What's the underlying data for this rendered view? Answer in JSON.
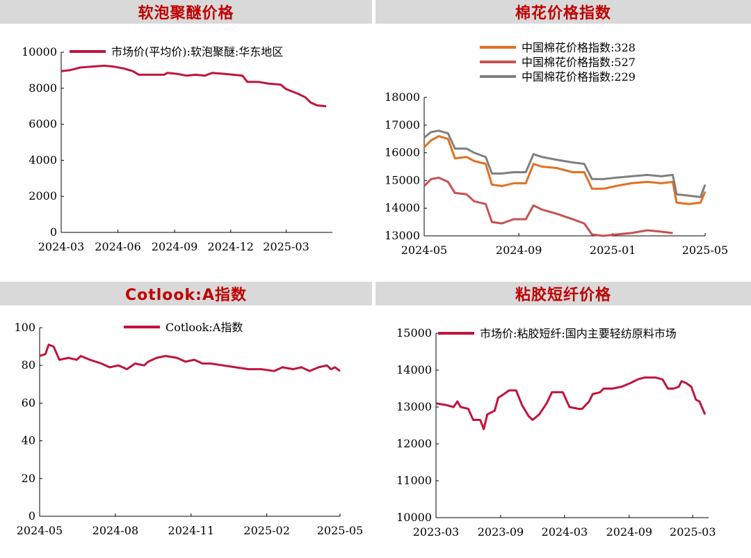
{
  "panels": {
    "p1": {
      "title": "软泡聚醚价格"
    },
    "p2": {
      "title": "棉花价格指数"
    },
    "p3": {
      "title": "Cotlook:A指数"
    },
    "p4": {
      "title": "粘胶短纤价格"
    }
  },
  "chart_data": [
    {
      "type": "line",
      "title": "软泡聚醚价格",
      "x_ticks": [
        "2024-03",
        "2024-06",
        "2024-09",
        "2024-12",
        "2025-03"
      ],
      "x_range": [
        "2024-03-01",
        "2025-05-15"
      ],
      "ylim": [
        0,
        10000
      ],
      "y_ticks": [
        0,
        2000,
        4000,
        6000,
        8000,
        10000
      ],
      "legend": "top",
      "series": [
        {
          "name": "市场价(平均价):软泡聚醚:华东地区",
          "color": "#c0143c",
          "points": [
            [
              "2024-03-01",
              8950
            ],
            [
              "2024-03-15",
              9000
            ],
            [
              "2024-04-01",
              9150
            ],
            [
              "2024-04-20",
              9200
            ],
            [
              "2024-05-10",
              9250
            ],
            [
              "2024-05-25",
              9200
            ],
            [
              "2024-06-10",
              9100
            ],
            [
              "2024-06-25",
              8950
            ],
            [
              "2024-07-05",
              8750
            ],
            [
              "2024-08-15",
              8750
            ],
            [
              "2024-08-20",
              8850
            ],
            [
              "2024-09-05",
              8800
            ],
            [
              "2024-09-20",
              8700
            ],
            [
              "2024-10-05",
              8750
            ],
            [
              "2024-10-20",
              8700
            ],
            [
              "2024-11-01",
              8850
            ],
            [
              "2024-11-20",
              8800
            ],
            [
              "2024-12-05",
              8750
            ],
            [
              "2024-12-20",
              8700
            ],
            [
              "2024-12-28",
              8350
            ],
            [
              "2025-01-15",
              8350
            ],
            [
              "2025-02-01",
              8250
            ],
            [
              "2025-02-20",
              8200
            ],
            [
              "2025-03-01",
              7950
            ],
            [
              "2025-03-20",
              7700
            ],
            [
              "2025-04-01",
              7500
            ],
            [
              "2025-04-10",
              7200
            ],
            [
              "2025-04-20",
              7050
            ],
            [
              "2025-05-05",
              7000
            ]
          ]
        }
      ]
    },
    {
      "type": "line",
      "title": "棉花价格指数",
      "x_ticks": [
        "2024-05",
        "2024-09",
        "2025-01",
        "2025-05"
      ],
      "x_range": [
        "2024-05-01",
        "2025-05-01"
      ],
      "ylim": [
        13000,
        18000
      ],
      "y_ticks": [
        13000,
        14000,
        15000,
        16000,
        17000,
        18000
      ],
      "legend": "top",
      "series": [
        {
          "name": "中国棉花价格指数:328",
          "color": "#e07020",
          "points": [
            [
              "2024-05-01",
              16200
            ],
            [
              "2024-05-10",
              16450
            ],
            [
              "2024-05-20",
              16600
            ],
            [
              "2024-06-01",
              16500
            ],
            [
              "2024-06-10",
              15800
            ],
            [
              "2024-06-25",
              15850
            ],
            [
              "2024-07-05",
              15700
            ],
            [
              "2024-07-20",
              15600
            ],
            [
              "2024-07-28",
              14850
            ],
            [
              "2024-08-10",
              14800
            ],
            [
              "2024-08-25",
              14900
            ],
            [
              "2024-09-10",
              14900
            ],
            [
              "2024-09-20",
              15600
            ],
            [
              "2024-10-01",
              15500
            ],
            [
              "2024-10-20",
              15450
            ],
            [
              "2024-11-10",
              15300
            ],
            [
              "2024-11-25",
              15300
            ],
            [
              "2024-12-05",
              14700
            ],
            [
              "2024-12-20",
              14700
            ],
            [
              "2025-01-05",
              14800
            ],
            [
              "2025-01-25",
              14900
            ],
            [
              "2025-02-15",
              14950
            ],
            [
              "2025-03-05",
              14900
            ],
            [
              "2025-03-20",
              14950
            ],
            [
              "2025-03-25",
              14200
            ],
            [
              "2025-04-10",
              14150
            ],
            [
              "2025-04-25",
              14200
            ],
            [
              "2025-05-01",
              14600
            ]
          ]
        },
        {
          "name": "中国棉花价格指数:527",
          "color": "#c85050",
          "points": [
            [
              "2024-05-01",
              14800
            ],
            [
              "2024-05-10",
              15050
            ],
            [
              "2024-05-20",
              15100
            ],
            [
              "2024-06-01",
              14950
            ],
            [
              "2024-06-10",
              14550
            ],
            [
              "2024-06-25",
              14500
            ],
            [
              "2024-07-05",
              14250
            ],
            [
              "2024-07-20",
              14150
            ],
            [
              "2024-07-28",
              13500
            ],
            [
              "2024-08-10",
              13450
            ],
            [
              "2024-08-25",
              13600
            ],
            [
              "2024-09-10",
              13600
            ],
            [
              "2024-09-20",
              14100
            ],
            [
              "2024-10-01",
              13950
            ],
            [
              "2024-10-20",
              13800
            ],
            [
              "2024-11-10",
              13600
            ],
            [
              "2024-11-25",
              13450
            ],
            [
              "2024-12-05",
              13050
            ],
            [
              "2024-12-20",
              13000
            ],
            [
              "2025-01-05",
              13050
            ],
            [
              "2025-01-25",
              13100
            ],
            [
              "2025-02-15",
              13200
            ],
            [
              "2025-03-05",
              13150
            ],
            [
              "2025-03-20",
              13100
            ]
          ]
        },
        {
          "name": "中国棉花价格指数:229",
          "color": "#7f7f7f",
          "points": [
            [
              "2024-05-01",
              16550
            ],
            [
              "2024-05-10",
              16750
            ],
            [
              "2024-05-20",
              16800
            ],
            [
              "2024-06-01",
              16700
            ],
            [
              "2024-06-10",
              16150
            ],
            [
              "2024-06-25",
              16150
            ],
            [
              "2024-07-05",
              16000
            ],
            [
              "2024-07-20",
              15850
            ],
            [
              "2024-07-28",
              15250
            ],
            [
              "2024-08-10",
              15250
            ],
            [
              "2024-08-25",
              15300
            ],
            [
              "2024-09-10",
              15300
            ],
            [
              "2024-09-20",
              15950
            ],
            [
              "2024-10-01",
              15850
            ],
            [
              "2024-10-20",
              15750
            ],
            [
              "2024-11-10",
              15650
            ],
            [
              "2024-11-25",
              15600
            ],
            [
              "2024-12-05",
              15050
            ],
            [
              "2024-12-20",
              15050
            ],
            [
              "2025-01-05",
              15100
            ],
            [
              "2025-01-25",
              15150
            ],
            [
              "2025-02-15",
              15200
            ],
            [
              "2025-03-05",
              15150
            ],
            [
              "2025-03-20",
              15200
            ],
            [
              "2025-03-25",
              14500
            ],
            [
              "2025-04-10",
              14450
            ],
            [
              "2025-04-25",
              14400
            ],
            [
              "2025-05-01",
              14850
            ]
          ]
        }
      ]
    },
    {
      "type": "line",
      "title": "Cotlook:A指数",
      "x_ticks": [
        "2024-05",
        "2024-08",
        "2024-11",
        "2025-02",
        "2025-05"
      ],
      "x_range": [
        "2024-05-01",
        "2025-05-01"
      ],
      "ylim": [
        0,
        100
      ],
      "y_ticks": [
        0,
        20,
        40,
        60,
        80,
        100
      ],
      "legend": "top",
      "series": [
        {
          "name": "Cotlook:A指数",
          "color": "#c0143c",
          "points": [
            [
              "2024-05-01",
              85
            ],
            [
              "2024-05-08",
              86
            ],
            [
              "2024-05-12",
              91
            ],
            [
              "2024-05-18",
              90
            ],
            [
              "2024-05-25",
              83
            ],
            [
              "2024-06-05",
              84
            ],
            [
              "2024-06-15",
              83
            ],
            [
              "2024-06-20",
              85
            ],
            [
              "2024-07-01",
              83
            ],
            [
              "2024-07-15",
              81
            ],
            [
              "2024-07-25",
              79
            ],
            [
              "2024-08-05",
              80
            ],
            [
              "2024-08-15",
              78
            ],
            [
              "2024-08-25",
              81
            ],
            [
              "2024-09-05",
              80
            ],
            [
              "2024-09-10",
              82
            ],
            [
              "2024-09-20",
              84
            ],
            [
              "2024-10-01",
              85
            ],
            [
              "2024-10-15",
              84
            ],
            [
              "2024-10-25",
              82
            ],
            [
              "2024-11-05",
              83
            ],
            [
              "2024-11-15",
              81
            ],
            [
              "2024-11-25",
              81
            ],
            [
              "2024-12-10",
              80
            ],
            [
              "2024-12-25",
              79
            ],
            [
              "2025-01-10",
              78
            ],
            [
              "2025-01-25",
              78
            ],
            [
              "2025-02-10",
              77
            ],
            [
              "2025-02-20",
              79
            ],
            [
              "2025-03-05",
              78
            ],
            [
              "2025-03-15",
              79
            ],
            [
              "2025-03-25",
              77
            ],
            [
              "2025-04-05",
              79
            ],
            [
              "2025-04-15",
              80
            ],
            [
              "2025-04-20",
              78
            ],
            [
              "2025-04-25",
              79
            ],
            [
              "2025-05-01",
              77
            ]
          ]
        }
      ]
    },
    {
      "type": "line",
      "title": "粘胶短纤价格",
      "x_ticks": [
        "2023-03",
        "2023-09",
        "2024-03",
        "2024-09",
        "2025-03"
      ],
      "x_range": [
        "2023-03-01",
        "2025-04-15"
      ],
      "ylim": [
        10000,
        15000
      ],
      "y_ticks": [
        10000,
        11000,
        12000,
        13000,
        14000,
        15000
      ],
      "legend": "top",
      "series": [
        {
          "name": "市场价:粘胶短纤:国内主要轻纺原料市场",
          "color": "#c0143c",
          "points": [
            [
              "2023-03-01",
              13100
            ],
            [
              "2023-04-01",
              13050
            ],
            [
              "2023-04-20",
              13000
            ],
            [
              "2023-05-01",
              13150
            ],
            [
              "2023-05-10",
              13000
            ],
            [
              "2023-06-01",
              12950
            ],
            [
              "2023-06-15",
              12650
            ],
            [
              "2023-07-05",
              12650
            ],
            [
              "2023-07-15",
              12400
            ],
            [
              "2023-07-25",
              12800
            ],
            [
              "2023-08-15",
              12900
            ],
            [
              "2023-08-25",
              13250
            ],
            [
              "2023-09-10",
              13350
            ],
            [
              "2023-09-25",
              13450
            ],
            [
              "2023-10-15",
              13450
            ],
            [
              "2023-11-01",
              13050
            ],
            [
              "2023-11-20",
              12750
            ],
            [
              "2023-12-01",
              12650
            ],
            [
              "2023-12-20",
              12800
            ],
            [
              "2024-01-10",
              13100
            ],
            [
              "2024-01-25",
              13400
            ],
            [
              "2024-02-25",
              13400
            ],
            [
              "2024-03-15",
              13000
            ],
            [
              "2024-04-10",
              12950
            ],
            [
              "2024-04-20",
              12950
            ],
            [
              "2024-05-10",
              13150
            ],
            [
              "2024-05-20",
              13350
            ],
            [
              "2024-06-10",
              13400
            ],
            [
              "2024-06-20",
              13500
            ],
            [
              "2024-07-15",
              13500
            ],
            [
              "2024-08-10",
              13550
            ],
            [
              "2024-09-05",
              13650
            ],
            [
              "2024-09-25",
              13750
            ],
            [
              "2024-10-15",
              13800
            ],
            [
              "2024-11-15",
              13800
            ],
            [
              "2024-12-05",
              13750
            ],
            [
              "2024-12-20",
              13500
            ],
            [
              "2025-01-05",
              13500
            ],
            [
              "2025-01-20",
              13550
            ],
            [
              "2025-01-28",
              13700
            ],
            [
              "2025-02-10",
              13650
            ],
            [
              "2025-02-25",
              13550
            ],
            [
              "2025-03-10",
              13200
            ],
            [
              "2025-03-20",
              13150
            ],
            [
              "2025-04-05",
              12800
            ]
          ]
        }
      ]
    }
  ]
}
